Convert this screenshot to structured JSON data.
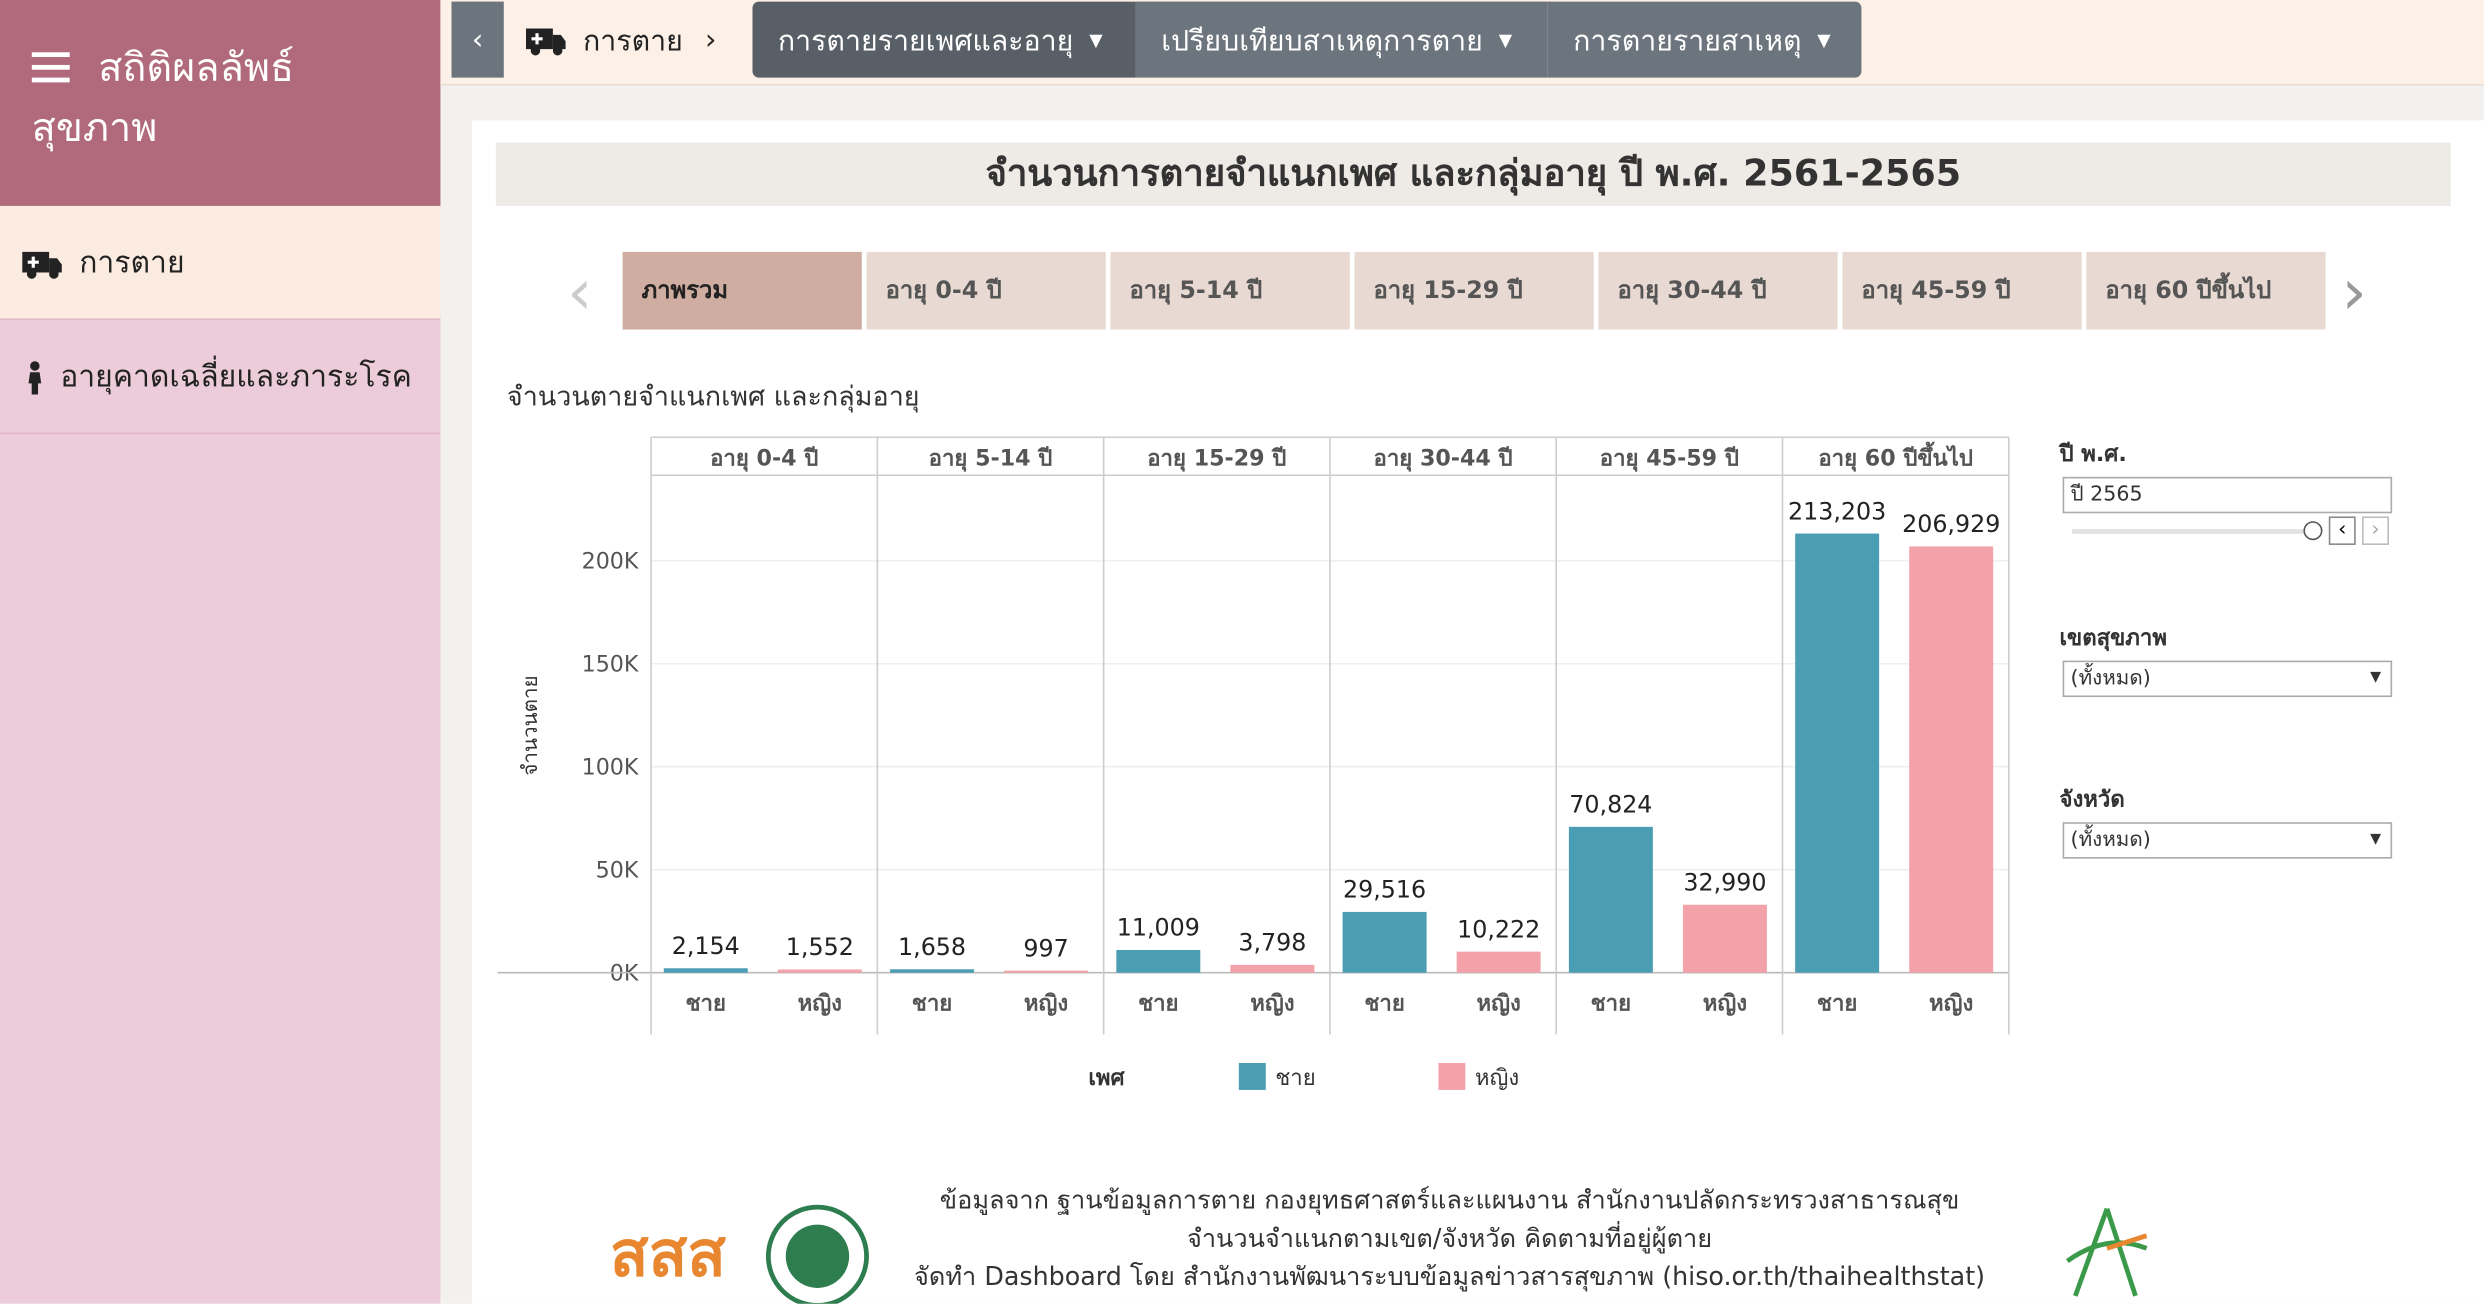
{
  "sidebar": {
    "title_lines": [
      "สถิติผลลัพธ์",
      "สุขภาพ"
    ],
    "menu": [
      "การตาย",
      "อายุคาดเฉลี่ยและภาระโรค"
    ]
  },
  "nav": {
    "breadcrumb": "การตาย",
    "items": [
      "การตายรายเพศและอายุ",
      "เปรียบเทียบสาเหตุการตาย",
      "การตายรายสาเหตุ"
    ]
  },
  "page_title": "จำนวนการตายจำแนกเพศ และกลุ่มอายุ ปี พ.ศ. 2561-2565",
  "tabs": [
    "ภาพรวม",
    "อายุ 0-4 ปี",
    "อายุ 5-14 ปี",
    "อายุ 15-29 ปี",
    "อายุ 30-44 ปี",
    "อายุ 45-59 ปี",
    "อายุ 60 ปีขึ้นไป"
  ],
  "filters": [
    {
      "label": "ปี พ.ศ.",
      "value": "ปี 2565"
    },
    {
      "label": "เขตสุขภาพ",
      "value": "(ทั้งหมด)"
    },
    {
      "label": "จังหวัด",
      "value": "(ทั้งหมด)"
    }
  ],
  "footer": [
    "ข้อมูลจาก ฐานข้อมูลการตาย กองยุทธศาสตร์และแผนงาน สำนักงานปลัดกระทรวงสาธารณสุข",
    "จำนวนจำแนกตามเขต/จังหวัด คิดตามที่อยู่ผู้ตาย",
    "จัดทำ Dashboard โดย สำนักงานพัฒนาระบบข้อมูลข่าวสารสุขภาพ (hiso.or.th/thaihealthstat)"
  ],
  "chart_data": {
    "type": "bar",
    "title": "จำนวนตายจำแนกเพศ และกลุ่มอายุ",
    "y_label": "จำนวนตาย",
    "legend_title": "เพศ",
    "categories": [
      "อายุ 0-4 ปี",
      "อายุ 5-14 ปี",
      "อายุ 15-29 ปี",
      "อายุ 30-44 ปี",
      "อายุ 45-59 ปี",
      "อายุ 60 ปีขึ้นไป"
    ],
    "series": [
      {
        "name": "ชาย",
        "color": "#4a9db3",
        "values": [
          2154,
          1658,
          11009,
          29516,
          70824,
          213203
        ],
        "value_labels": [
          "2,154",
          "1,658",
          "11,009",
          "29,516",
          "70,824",
          "213,203"
        ]
      },
      {
        "name": "หญิง",
        "color": "#f3a2aa",
        "values": [
          1552,
          997,
          3798,
          10222,
          32990,
          206929
        ],
        "value_labels": [
          "1,552",
          "997",
          "3,798",
          "10,222",
          "32,990",
          "206,929"
        ]
      }
    ],
    "ylim": [
      0,
      241500
    ],
    "yticks": [
      {
        "value": 0,
        "label": "0K"
      },
      {
        "value": 50000,
        "label": "50K"
      },
      {
        "value": 100000,
        "label": "100K"
      },
      {
        "value": 150000,
        "label": "150K"
      },
      {
        "value": 200000,
        "label": "200K"
      }
    ],
    "grid": true
  }
}
